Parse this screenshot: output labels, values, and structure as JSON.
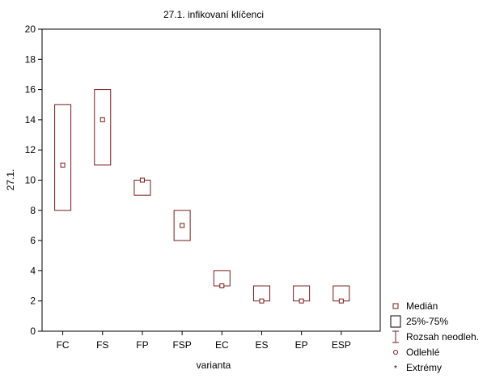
{
  "chart_data": {
    "type": "box",
    "title": "27.1. infikovaní klíčenci",
    "xlabel": "varianta",
    "ylabel": "27.1.",
    "ylim": [
      0,
      20
    ],
    "yticks": [
      0,
      2,
      4,
      6,
      8,
      10,
      12,
      14,
      16,
      18,
      20
    ],
    "grid": false,
    "legend_position": "bottom-right",
    "categories": [
      "FC",
      "FS",
      "FP",
      "FSP",
      "EC",
      "ES",
      "EP",
      "ESP"
    ],
    "series": [
      {
        "category": "FC",
        "median": 11,
        "q1": 8,
        "q3": 15
      },
      {
        "category": "FS",
        "median": 14,
        "q1": 11,
        "q3": 16
      },
      {
        "category": "FP",
        "median": 10,
        "q1": 9,
        "q3": 10
      },
      {
        "category": "FSP",
        "median": 7,
        "q1": 6,
        "q3": 8
      },
      {
        "category": "EC",
        "median": 3,
        "q1": 3,
        "q3": 4
      },
      {
        "category": "ES",
        "median": 2,
        "q1": 2,
        "q3": 3
      },
      {
        "category": "EP",
        "median": 2,
        "q1": 2,
        "q3": 3
      },
      {
        "category": "ESP",
        "median": 2,
        "q1": 2,
        "q3": 3
      }
    ],
    "legend": [
      "Medián",
      "25%-75%",
      "Rozsah neodleh.",
      "Odlehlé",
      "Extrémy"
    ],
    "colors": {
      "box": "#7a1a1a",
      "median_fill": "#ffffff",
      "axis": "#000000"
    }
  }
}
